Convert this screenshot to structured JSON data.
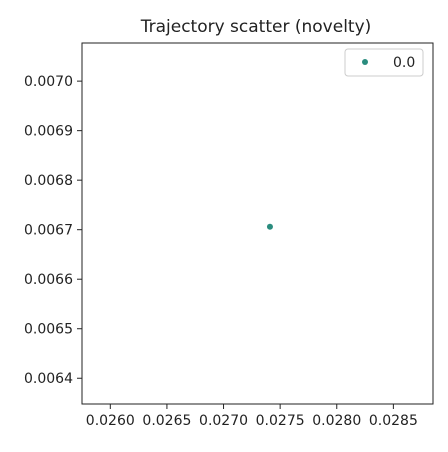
{
  "chart_data": {
    "type": "scatter",
    "title": "Trajectory scatter (novelty)",
    "xlabel": "",
    "ylabel": "",
    "xlim": [
      0.02575,
      0.02885
    ],
    "ylim": [
      0.006348,
      0.007077
    ],
    "x_ticks": [
      "0.0260",
      "0.0265",
      "0.0270",
      "0.0275",
      "0.0280",
      "0.0285"
    ],
    "x_tick_values": [
      0.026,
      0.0265,
      0.027,
      0.0275,
      0.028,
      0.0285
    ],
    "y_ticks": [
      "0.0070",
      "0.0069",
      "0.0068",
      "0.0067",
      "0.0066",
      "0.0065",
      "0.0064"
    ],
    "y_tick_values": [
      0.007,
      0.0069,
      0.0068,
      0.0067,
      0.0066,
      0.0065,
      0.0064
    ],
    "grid": false,
    "legend_position": "top-right",
    "series": [
      {
        "name": "0.0",
        "color": "#2a8c7e",
        "points": [
          {
            "x": 0.02741,
            "y": 0.006706
          }
        ]
      }
    ]
  }
}
